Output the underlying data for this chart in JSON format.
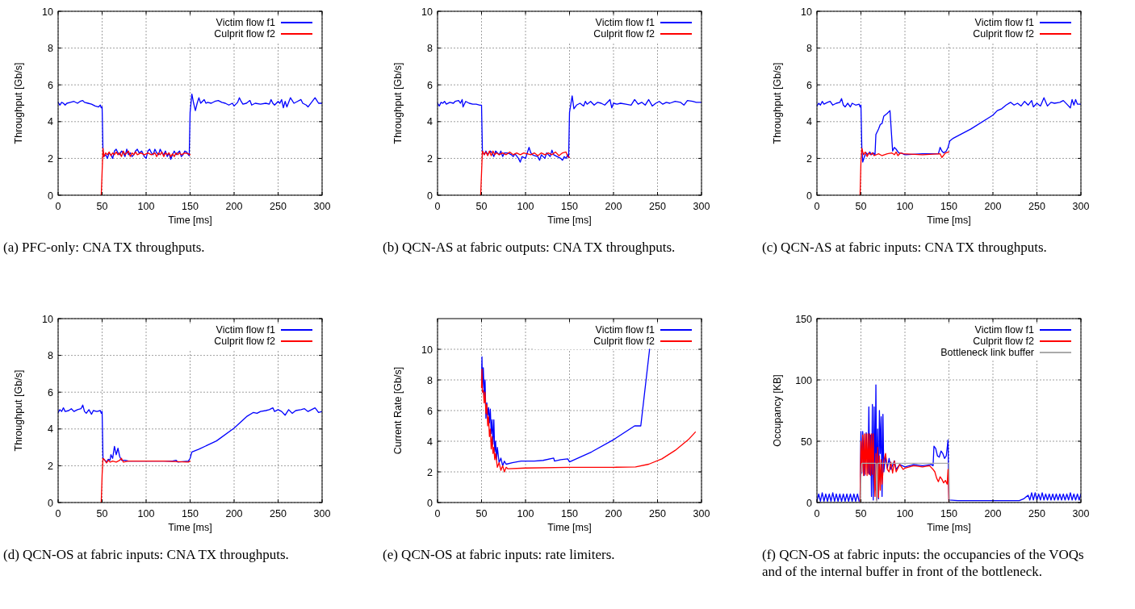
{
  "chart_data": [
    {
      "type": "line",
      "title": "(a) PFC-only: CNA TX throughputs.",
      "xlabel": "Time [ms]",
      "ylabel": "Throughput [Gb/s]",
      "xlim": [
        0,
        300
      ],
      "ylim": [
        0,
        10
      ],
      "xticks": [
        0,
        50,
        100,
        150,
        200,
        250,
        300
      ],
      "yticks": [
        0,
        2,
        4,
        6,
        8,
        10
      ],
      "grid": true,
      "legend": "top right",
      "series": [
        {
          "name": "Victim flow f1",
          "color": "#0000ff",
          "x": [
            0,
            2,
            4,
            6,
            8,
            10,
            14,
            18,
            22,
            25,
            28,
            30,
            34,
            38,
            42,
            46,
            48,
            49,
            50,
            51,
            52,
            54,
            56,
            58,
            60,
            62,
            64,
            66,
            68,
            70,
            72,
            74,
            76,
            78,
            80,
            82,
            84,
            86,
            88,
            90,
            92,
            95,
            98,
            100,
            102,
            104,
            106,
            108,
            110,
            112,
            114,
            116,
            118,
            120,
            122,
            124,
            126,
            128,
            130,
            132,
            134,
            136,
            138,
            140,
            142,
            144,
            146,
            148,
            149,
            150,
            152,
            154,
            156,
            158,
            160,
            162,
            164,
            166,
            168,
            170,
            174,
            178,
            182,
            186,
            190,
            194,
            198,
            200,
            204,
            206,
            208,
            210,
            214,
            218,
            220,
            224,
            230,
            236,
            240,
            242,
            244,
            246,
            250,
            252,
            254,
            256,
            258,
            260,
            264,
            268,
            272,
            276,
            278,
            282,
            284,
            288,
            292,
            296,
            300
          ],
          "values": [
            5.05,
            4.9,
            5.05,
            5.0,
            4.9,
            5.0,
            5.05,
            5.1,
            5.0,
            5.1,
            5.15,
            5.05,
            5.0,
            4.95,
            4.85,
            4.8,
            4.9,
            4.75,
            4.8,
            2.4,
            2.1,
            2.2,
            2.0,
            2.3,
            2.2,
            2.0,
            2.4,
            2.5,
            2.3,
            2.2,
            2.4,
            2.3,
            2.1,
            2.5,
            2.2,
            2.3,
            2.1,
            2.2,
            2.4,
            2.5,
            2.3,
            2.4,
            2.1,
            2.0,
            2.4,
            2.5,
            2.3,
            2.2,
            2.5,
            2.3,
            2.2,
            2.5,
            2.3,
            2.2,
            2.4,
            2.1,
            2.3,
            1.95,
            2.2,
            2.4,
            2.2,
            2.3,
            2.4,
            2.1,
            2.2,
            2.4,
            2.35,
            2.2,
            2.15,
            4.5,
            5.5,
            5.0,
            4.6,
            5.0,
            5.3,
            5.0,
            5.1,
            5.2,
            5.0,
            5.05,
            5.0,
            5.1,
            5.15,
            5.05,
            5.0,
            4.9,
            5.0,
            4.85,
            5.05,
            5.3,
            5.1,
            4.95,
            5.0,
            5.15,
            4.9,
            5.0,
            4.95,
            5.0,
            4.95,
            5.2,
            5.0,
            4.9,
            5.1,
            5.0,
            5.2,
            4.75,
            5.1,
            4.8,
            5.3,
            5.0,
            5.1,
            5.2,
            5.0,
            4.9,
            4.8,
            5.05,
            5.3,
            5.0,
            5.0
          ]
        },
        {
          "name": "Culprit flow f2",
          "color": "#ff0000",
          "x": [
            49,
            51,
            52,
            54,
            56,
            58,
            60,
            62,
            64,
            66,
            68,
            70,
            72,
            74,
            76,
            78,
            80,
            82,
            84,
            86,
            88,
            90,
            94,
            98,
            102,
            106,
            110,
            112,
            114,
            116,
            118,
            120,
            122,
            124,
            126,
            128,
            130,
            132,
            134,
            136,
            138,
            140,
            144,
            148,
            150
          ],
          "values": [
            0,
            2.55,
            2.1,
            2.3,
            2.2,
            2.35,
            2.15,
            2.3,
            2.2,
            2.35,
            2.2,
            2.3,
            2.1,
            2.4,
            2.2,
            2.3,
            2.4,
            2.1,
            2.3,
            2.2,
            2.35,
            2.2,
            2.3,
            2.2,
            2.3,
            2.2,
            2.3,
            2.1,
            2.3,
            2.2,
            2.35,
            2.1,
            2.3,
            2.2,
            2.3,
            2.1,
            2.25,
            2.1,
            2.3,
            2.2,
            2.3,
            2.2,
            2.3,
            2.25,
            2.2
          ]
        }
      ]
    },
    {
      "type": "line",
      "title": "(b) QCN-AS at fabric outputs: CNA TX throughputs.",
      "xlabel": "Time [ms]",
      "ylabel": "Throughput [Gb/s]",
      "xlim": [
        0,
        300
      ],
      "ylim": [
        0,
        10
      ],
      "xticks": [
        0,
        50,
        100,
        150,
        200,
        250,
        300
      ],
      "yticks": [
        0,
        2,
        4,
        6,
        8,
        10
      ],
      "grid": true,
      "legend": "top right",
      "series": [
        {
          "name": "Victim flow f1",
          "color": "#0000ff",
          "x": [
            0,
            2,
            4,
            6,
            8,
            10,
            14,
            18,
            20,
            24,
            26,
            28,
            29,
            32,
            36,
            40,
            44,
            48,
            50,
            51,
            53,
            55,
            57,
            60,
            62,
            64,
            66,
            68,
            70,
            72,
            74,
            76,
            80,
            84,
            86,
            88,
            92,
            94,
            96,
            100,
            102,
            104,
            106,
            108,
            110,
            114,
            116,
            118,
            122,
            124,
            128,
            130,
            132,
            136,
            140,
            142,
            144,
            146,
            148,
            149,
            150,
            153,
            155,
            158,
            162,
            166,
            168,
            170,
            174,
            178,
            182,
            186,
            190,
            196,
            198,
            200,
            204,
            208,
            214,
            220,
            224,
            228,
            232,
            236,
            240,
            244,
            248,
            252,
            256,
            260,
            264,
            270,
            276,
            280,
            284,
            290,
            294,
            300
          ],
          "values": [
            5.0,
            4.85,
            5.05,
            5.0,
            5.1,
            4.95,
            5.05,
            5.0,
            5.1,
            5.15,
            5.0,
            5.2,
            4.8,
            5.1,
            5.0,
            4.95,
            4.95,
            4.9,
            4.9,
            2.4,
            2.2,
            2.4,
            2.2,
            2.4,
            2.3,
            2.1,
            2.4,
            2.3,
            2.2,
            2.4,
            2.1,
            2.3,
            2.3,
            2.2,
            2.1,
            2.25,
            2.0,
            1.8,
            2.1,
            2.0,
            2.3,
            2.6,
            2.3,
            2.2,
            2.15,
            2.1,
            1.9,
            2.2,
            2.0,
            2.3,
            2.1,
            2.45,
            2.2,
            2.1,
            2.0,
            1.9,
            2.1,
            2.0,
            2.2,
            2.05,
            4.5,
            5.4,
            4.7,
            4.9,
            5.0,
            4.85,
            5.1,
            4.95,
            5.1,
            4.9,
            5.05,
            5.0,
            4.9,
            5.2,
            4.75,
            5.0,
            4.95,
            5.0,
            4.95,
            4.9,
            5.2,
            4.95,
            5.05,
            4.9,
            5.2,
            4.85,
            5.0,
            5.1,
            4.95,
            5.05,
            5.0,
            5.1,
            5.05,
            4.9,
            5.15,
            5.1,
            5.05,
            5.05
          ]
        },
        {
          "name": "Culprit flow f2",
          "color": "#ff0000",
          "x": [
            49,
            51,
            53,
            55,
            57,
            59,
            61,
            63,
            65,
            67,
            70,
            74,
            78,
            82,
            86,
            90,
            94,
            98,
            102,
            106,
            110,
            114,
            118,
            122,
            126,
            130,
            134,
            138,
            142,
            146,
            148,
            150
          ],
          "values": [
            0,
            2.4,
            2.2,
            2.35,
            2.15,
            2.4,
            2.15,
            2.4,
            2.2,
            2.3,
            2.2,
            2.3,
            2.2,
            2.35,
            2.2,
            2.3,
            2.2,
            2.3,
            2.25,
            2.2,
            2.3,
            2.15,
            2.3,
            2.2,
            2.3,
            2.2,
            2.35,
            2.15,
            2.3,
            2.35,
            2.1,
            2.05
          ]
        }
      ]
    },
    {
      "type": "line",
      "title": "(c) QCN-AS at fabric inputs: CNA TX throughputs.",
      "xlabel": "Time [ms]",
      "ylabel": "Throughput [Gb/s]",
      "xlim": [
        0,
        300
      ],
      "ylim": [
        0,
        10
      ],
      "xticks": [
        0,
        50,
        100,
        150,
        200,
        250,
        300
      ],
      "yticks": [
        0,
        2,
        4,
        6,
        8,
        10
      ],
      "grid": true,
      "legend": "top right",
      "series": [
        {
          "name": "Victim flow f1",
          "color": "#0000ff",
          "x": [
            0,
            2,
            4,
            6,
            8,
            12,
            15,
            18,
            22,
            26,
            28,
            30,
            32,
            35,
            38,
            40,
            44,
            48,
            49,
            50,
            51,
            52,
            54,
            56,
            58,
            60,
            62,
            64,
            66,
            67,
            70,
            72,
            74,
            76,
            80,
            83,
            86,
            88,
            90,
            93,
            96,
            100,
            120,
            138,
            140,
            142,
            144,
            147,
            149,
            151,
            155,
            175,
            200,
            205,
            210,
            215,
            220,
            224,
            228,
            232,
            236,
            240,
            244,
            246,
            250,
            254,
            258,
            262,
            266,
            270,
            276,
            280,
            284,
            288,
            290,
            292,
            294,
            296,
            300
          ],
          "values": [
            4.85,
            5.0,
            4.9,
            5.1,
            4.95,
            5.05,
            5.1,
            4.9,
            5.0,
            5.05,
            5.25,
            4.9,
            4.8,
            5.0,
            4.8,
            5.0,
            4.9,
            4.95,
            4.8,
            4.9,
            2.6,
            1.8,
            2.1,
            2.3,
            2.2,
            2.35,
            2.2,
            2.3,
            2.2,
            3.3,
            3.6,
            3.85,
            3.9,
            4.3,
            4.45,
            4.6,
            2.4,
            2.6,
            2.5,
            2.3,
            2.3,
            2.2,
            2.25,
            2.25,
            2.6,
            2.4,
            2.3,
            2.4,
            2.6,
            2.95,
            3.1,
            3.6,
            4.35,
            4.6,
            4.7,
            4.9,
            5.05,
            4.9,
            5.0,
            4.85,
            5.1,
            4.9,
            5.15,
            4.8,
            5.0,
            4.85,
            5.3,
            4.85,
            5.05,
            5.0,
            5.05,
            5.15,
            4.95,
            4.75,
            5.2,
            4.9,
            5.2,
            4.95,
            4.95
          ]
        },
        {
          "name": "Culprit flow f2",
          "color": "#ff0000",
          "x": [
            49,
            50,
            51,
            53,
            55,
            57,
            59,
            61,
            63,
            65,
            70,
            74,
            80,
            85,
            88,
            90,
            92,
            95,
            98,
            120,
            140,
            142,
            146,
            150
          ],
          "values": [
            0,
            1.8,
            2.55,
            2.2,
            2.35,
            2.1,
            2.3,
            2.2,
            2.3,
            2.15,
            2.25,
            2.15,
            2.25,
            2.3,
            2.2,
            2.35,
            2.15,
            2.3,
            2.25,
            2.2,
            2.25,
            2.05,
            2.3,
            2.35
          ]
        }
      ]
    },
    {
      "type": "line",
      "title": "(d) QCN-OS at fabric inputs: CNA TX throughputs.",
      "xlabel": "Time [ms]",
      "ylabel": "Throughput [Gb/s]",
      "xlim": [
        0,
        300
      ],
      "ylim": [
        0,
        10
      ],
      "xticks": [
        0,
        50,
        100,
        150,
        200,
        250,
        300
      ],
      "yticks": [
        0,
        2,
        4,
        6,
        8,
        10
      ],
      "grid": true,
      "legend": "top right",
      "series": [
        {
          "name": "Victim flow f1",
          "color": "#0000ff",
          "x": [
            0,
            2,
            4,
            6,
            8,
            12,
            15,
            18,
            22,
            26,
            28,
            30,
            32,
            35,
            38,
            40,
            44,
            48,
            49,
            50,
            51,
            53,
            55,
            57,
            59,
            60,
            62,
            64,
            66,
            68,
            70,
            72,
            76,
            80,
            100,
            130,
            134,
            136,
            148,
            150,
            152,
            160,
            180,
            200,
            215,
            222,
            226,
            230,
            236,
            240,
            244,
            246,
            250,
            254,
            258,
            262,
            266,
            270,
            276,
            280,
            284,
            288,
            292,
            296,
            300
          ],
          "values": [
            4.9,
            5.05,
            4.95,
            5.15,
            4.95,
            5.0,
            5.1,
            4.95,
            5.05,
            5.1,
            5.3,
            4.95,
            4.85,
            5.05,
            4.8,
            5.0,
            4.95,
            5.0,
            4.85,
            4.95,
            2.4,
            2.3,
            2.2,
            2.35,
            2.3,
            2.6,
            2.4,
            3.05,
            2.6,
            2.95,
            2.5,
            2.3,
            2.3,
            2.25,
            2.25,
            2.25,
            2.3,
            2.2,
            2.25,
            2.4,
            2.75,
            2.9,
            3.35,
            4.05,
            4.7,
            4.9,
            4.85,
            4.95,
            5.0,
            5.05,
            5.15,
            4.95,
            5.05,
            4.95,
            4.75,
            5.05,
            4.85,
            5.0,
            5.05,
            5.1,
            4.95,
            5.05,
            5.15,
            4.9,
            4.95
          ]
        },
        {
          "name": "Culprit flow f2",
          "color": "#ff0000",
          "x": [
            49,
            50,
            51,
            53,
            55,
            57,
            59,
            62,
            66,
            70,
            72,
            74,
            80,
            120,
            148,
            150
          ],
          "values": [
            0,
            1.5,
            2.4,
            2.3,
            2.15,
            2.3,
            2.2,
            2.25,
            2.2,
            2.3,
            2.4,
            2.2,
            2.25,
            2.25,
            2.2,
            2.25
          ]
        }
      ]
    },
    {
      "type": "line",
      "title": "(e) QCN-OS at fabric inputs: rate limiters.",
      "xlabel": "Time [ms]",
      "ylabel": "Current Rate [Gb/s]",
      "xlim": [
        0,
        300
      ],
      "ylim": [
        0,
        12
      ],
      "xticks": [
        0,
        50,
        100,
        150,
        200,
        250,
        300
      ],
      "yticks": [
        0,
        2,
        4,
        6,
        8,
        10
      ],
      "grid": true,
      "legend": "top right",
      "series": [
        {
          "name": "Victim flow f1",
          "color": "#0000ff",
          "x": [
            50,
            50.5,
            51,
            52,
            53,
            54,
            55,
            56,
            57,
            58,
            59,
            60,
            61,
            62,
            63,
            64,
            65,
            66,
            67,
            68,
            70,
            72,
            74,
            76,
            78,
            85,
            95,
            110,
            120,
            132,
            133,
            140,
            148,
            150,
            175,
            200,
            224,
            231,
            241
          ],
          "values": [
            8,
            9.5,
            7.5,
            8.8,
            7,
            8,
            5.5,
            6.5,
            5.7,
            6.2,
            5.2,
            6.1,
            4.5,
            5.4,
            3.8,
            5.4,
            3.3,
            4.0,
            2.8,
            3.6,
            2.6,
            2.9,
            2.4,
            2.7,
            2.5,
            2.6,
            2.7,
            2.7,
            2.75,
            2.9,
            2.7,
            2.8,
            2.85,
            2.65,
            3.3,
            4.1,
            5.0,
            5.0,
            10
          ]
        },
        {
          "name": "Culprit flow f2",
          "color": "#ff0000",
          "x": [
            50,
            50.5,
            51,
            52,
            53,
            54,
            55,
            56,
            57,
            58,
            59,
            60,
            61,
            62,
            63,
            64,
            65,
            66,
            68,
            70,
            72,
            74,
            76,
            78,
            80,
            100,
            150,
            200,
            225,
            240,
            255,
            270,
            285,
            293
          ],
          "values": [
            7.5,
            8.7,
            7.2,
            7.3,
            6.5,
            7.2,
            5.8,
            6.4,
            5.0,
            5.6,
            4.3,
            4.8,
            3.5,
            4.3,
            3.2,
            3.6,
            2.8,
            3.2,
            2.3,
            2.6,
            2.1,
            2.4,
            2.0,
            2.3,
            2.2,
            2.25,
            2.3,
            2.3,
            2.32,
            2.5,
            2.85,
            3.4,
            4.1,
            4.6
          ]
        }
      ]
    },
    {
      "type": "line",
      "title": "(f) QCN-OS at fabric inputs: the occupancies of the VOQs and of the internal buffer in front of the bottleneck.",
      "xlabel": "Time [ms]",
      "ylabel": "Occupancy [KB]",
      "xlim": [
        0,
        300
      ],
      "ylim": [
        0,
        150
      ],
      "xticks": [
        0,
        50,
        100,
        150,
        200,
        250,
        300
      ],
      "yticks": [
        0,
        50,
        100,
        150
      ],
      "grid": true,
      "legend": "top right",
      "series": [
        {
          "name": "Victim flow f1",
          "color": "#0000ff",
          "x": [
            0,
            2,
            4,
            6,
            8,
            10,
            12,
            14,
            16,
            18,
            20,
            22,
            24,
            26,
            28,
            30,
            32,
            34,
            36,
            38,
            40,
            42,
            44,
            46,
            48,
            49,
            50,
            51,
            52,
            54,
            56,
            58,
            59,
            60,
            61,
            62,
            63,
            64,
            65,
            66,
            67,
            68,
            69,
            70,
            71,
            72,
            73,
            74,
            75,
            76,
            78,
            80,
            82,
            84,
            88,
            90,
            94,
            100,
            110,
            120,
            130,
            132,
            133,
            135,
            137,
            139,
            141,
            143,
            145,
            147,
            149,
            150,
            160,
            200,
            230,
            235,
            240,
            242,
            244,
            246,
            248,
            250,
            252,
            254,
            256,
            258,
            260,
            262,
            264,
            266,
            268,
            270,
            272,
            274,
            276,
            278,
            280,
            282,
            284,
            286,
            288,
            290,
            292,
            294,
            296,
            298,
            300
          ],
          "values": [
            1,
            7,
            1,
            8,
            1,
            7,
            1,
            7,
            1,
            8,
            1,
            7,
            1,
            7,
            1,
            7,
            1,
            7,
            1,
            7,
            1,
            7,
            1,
            7,
            1,
            2,
            58,
            24,
            58,
            22,
            57,
            24,
            78,
            23,
            55,
            5,
            80,
            2,
            78,
            10,
            96,
            2,
            60,
            3,
            75,
            40,
            70,
            5,
            72,
            25,
            38,
            28,
            36,
            27,
            34,
            27,
            31,
            29,
            31,
            30,
            31,
            30,
            46,
            44,
            38,
            37,
            42,
            40,
            36,
            38,
            51,
            2,
            1.5,
            1.5,
            1.5,
            3,
            6,
            2,
            8,
            2,
            8,
            2,
            7,
            2,
            8,
            2,
            7,
            2,
            7,
            2,
            7,
            2,
            7,
            2,
            7,
            2,
            7,
            2,
            7,
            2,
            8,
            2,
            7,
            2,
            7,
            2,
            7
          ]
        },
        {
          "name": "Culprit flow f2",
          "color": "#ff0000",
          "x": [
            49,
            50,
            51,
            52,
            53,
            54,
            55,
            56,
            57,
            58,
            59,
            60,
            61,
            62,
            63,
            64,
            65,
            66,
            67,
            68,
            69,
            70,
            71,
            72,
            73,
            74,
            76,
            78,
            80,
            82,
            84,
            86,
            88,
            90,
            94,
            98,
            100,
            110,
            120,
            128,
            132,
            134,
            136,
            138,
            140,
            142,
            144,
            146,
            148,
            149,
            150
          ],
          "values": [
            0,
            50,
            25,
            55,
            22,
            56,
            23,
            56,
            22,
            56,
            23,
            56,
            22,
            56,
            23,
            56,
            22,
            5,
            40,
            2,
            45,
            4,
            38,
            10,
            35,
            15,
            34,
            40,
            27,
            25,
            33,
            24,
            34,
            25,
            31,
            27,
            28,
            30,
            29,
            30,
            27,
            25,
            20,
            17,
            21,
            19,
            16,
            18,
            15,
            27,
            0
          ]
        },
        {
          "name": "Bottleneck link buffer",
          "color": "#aaaaaa",
          "x": [
            0,
            49.5,
            50,
            51,
            67,
            68,
            69,
            150,
            150.5,
            300
          ],
          "values": [
            0,
            0,
            20,
            32,
            32,
            0,
            32,
            32,
            0,
            0
          ]
        }
      ]
    }
  ]
}
